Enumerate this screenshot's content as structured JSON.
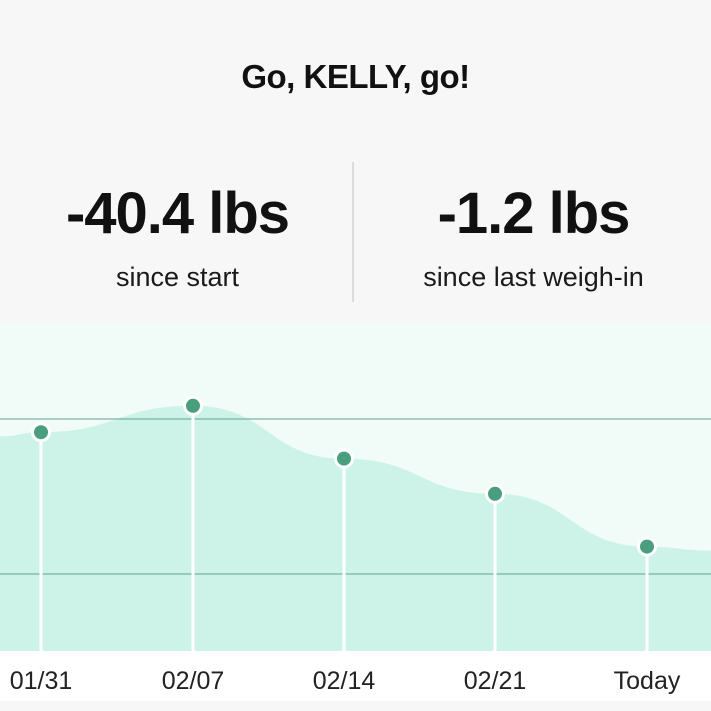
{
  "greeting": "Go, KELLY, go!",
  "stats": {
    "since_start": {
      "value": "-40.4 lbs",
      "caption": "since start"
    },
    "since_last": {
      "value": "-1.2 lbs",
      "caption": "since last weigh-in"
    }
  },
  "chart_data": {
    "type": "area",
    "categories": [
      "01/31",
      "02/07",
      "02/14",
      "02/21",
      "Today"
    ],
    "values": [
      0.8,
      0.95,
      0.65,
      0.45,
      0.15
    ],
    "colors": {
      "fill": "#cdf3e9",
      "plot_background": "#f1fbf8",
      "point": "#4a9d7d",
      "gridline": "#5fa38a"
    }
  }
}
